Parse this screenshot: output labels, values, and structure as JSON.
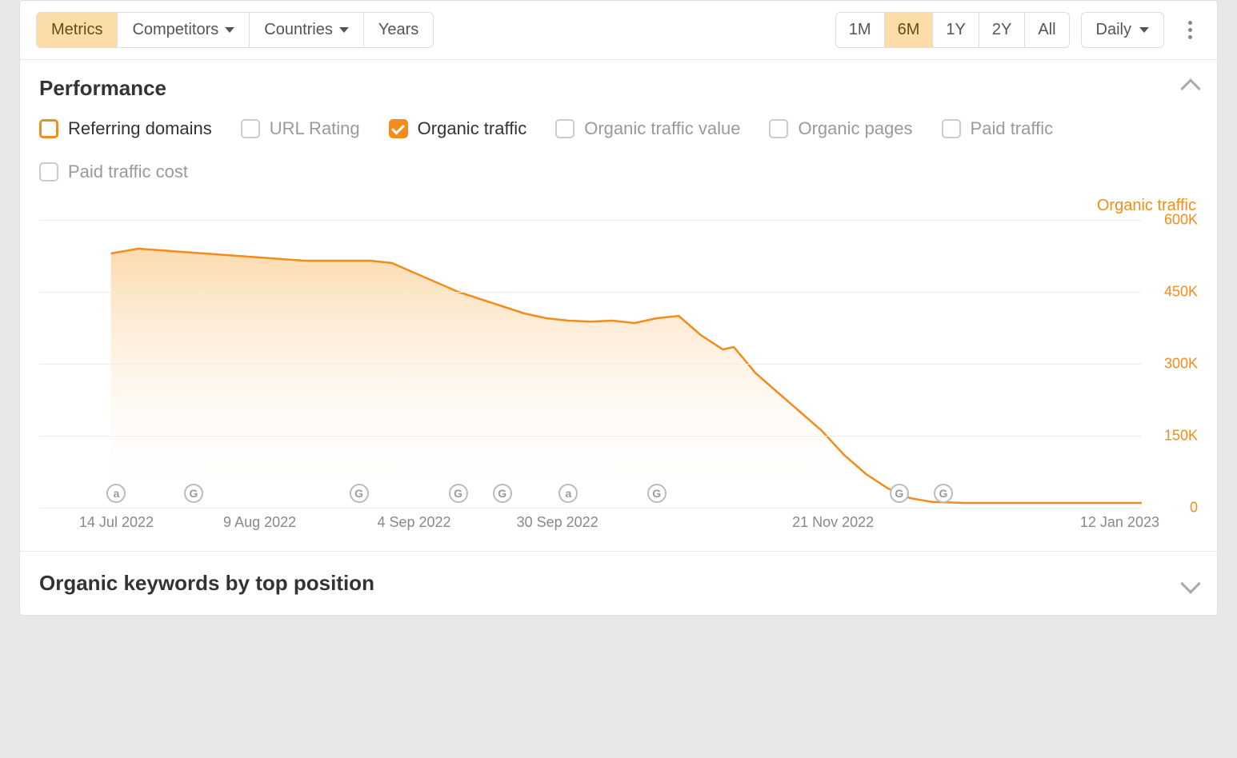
{
  "colors": {
    "accent": "#f28c1a",
    "area_top": "#fbd6a5",
    "area_bottom": "#ffffff",
    "grid": "#eeeeee",
    "border": "#dddddd",
    "text_muted": "#9a9a9a",
    "background": "#e8e8e8"
  },
  "toolbar": {
    "tabs": [
      {
        "label": "Metrics",
        "active": true,
        "dropdown": false
      },
      {
        "label": "Competitors",
        "active": false,
        "dropdown": true
      },
      {
        "label": "Countries",
        "active": false,
        "dropdown": true
      },
      {
        "label": "Years",
        "active": false,
        "dropdown": false
      }
    ],
    "ranges": [
      {
        "label": "1M",
        "active": false
      },
      {
        "label": "6M",
        "active": true
      },
      {
        "label": "1Y",
        "active": false
      },
      {
        "label": "2Y",
        "active": false
      },
      {
        "label": "All",
        "active": false
      }
    ],
    "frequency": "Daily"
  },
  "performance": {
    "title": "Performance",
    "metrics": [
      {
        "label": "Referring domains",
        "state": "outlined"
      },
      {
        "label": "URL Rating",
        "state": "off"
      },
      {
        "label": "Organic traffic",
        "state": "checked"
      },
      {
        "label": "Organic traffic value",
        "state": "off"
      },
      {
        "label": "Organic pages",
        "state": "off"
      },
      {
        "label": "Paid traffic",
        "state": "off"
      },
      {
        "label": "Paid traffic cost",
        "state": "off"
      }
    ],
    "chart": {
      "type": "area",
      "series_label": "Organic traffic",
      "line_color": "#f28c1a",
      "line_width": 2.5,
      "area_gradient_top": "#fbd6a5",
      "area_gradient_bottom": "#ffffff",
      "ylim": [
        0,
        600000
      ],
      "yticks": [
        {
          "value": 600000,
          "label": "600K"
        },
        {
          "value": 450000,
          "label": "450K"
        },
        {
          "value": 300000,
          "label": "300K"
        },
        {
          "value": 150000,
          "label": "150K"
        },
        {
          "value": 0,
          "label": "0"
        }
      ],
      "xlim": [
        0,
        100
      ],
      "xticks": [
        {
          "pos": 7,
          "label": "14 Jul 2022"
        },
        {
          "pos": 20,
          "label": "9 Aug 2022"
        },
        {
          "pos": 34,
          "label": "4 Sep 2022"
        },
        {
          "pos": 47,
          "label": "30 Sep 2022"
        },
        {
          "pos": 72,
          "label": "21 Nov 2022"
        },
        {
          "pos": 98,
          "label": "12 Jan 2023"
        }
      ],
      "data": [
        {
          "x": 6.5,
          "y": 530000
        },
        {
          "x": 9,
          "y": 540000
        },
        {
          "x": 12,
          "y": 535000
        },
        {
          "x": 15,
          "y": 530000
        },
        {
          "x": 18,
          "y": 525000
        },
        {
          "x": 21,
          "y": 520000
        },
        {
          "x": 24,
          "y": 515000
        },
        {
          "x": 27,
          "y": 515000
        },
        {
          "x": 30,
          "y": 515000
        },
        {
          "x": 32,
          "y": 510000
        },
        {
          "x": 34,
          "y": 490000
        },
        {
          "x": 36,
          "y": 470000
        },
        {
          "x": 38,
          "y": 450000
        },
        {
          "x": 40,
          "y": 435000
        },
        {
          "x": 42,
          "y": 420000
        },
        {
          "x": 44,
          "y": 405000
        },
        {
          "x": 46,
          "y": 395000
        },
        {
          "x": 48,
          "y": 390000
        },
        {
          "x": 50,
          "y": 388000
        },
        {
          "x": 52,
          "y": 390000
        },
        {
          "x": 54,
          "y": 385000
        },
        {
          "x": 56,
          "y": 395000
        },
        {
          "x": 58,
          "y": 400000
        },
        {
          "x": 59,
          "y": 380000
        },
        {
          "x": 60,
          "y": 360000
        },
        {
          "x": 62,
          "y": 330000
        },
        {
          "x": 63,
          "y": 335000
        },
        {
          "x": 65,
          "y": 280000
        },
        {
          "x": 67,
          "y": 240000
        },
        {
          "x": 69,
          "y": 200000
        },
        {
          "x": 71,
          "y": 160000
        },
        {
          "x": 73,
          "y": 110000
        },
        {
          "x": 75,
          "y": 70000
        },
        {
          "x": 77,
          "y": 40000
        },
        {
          "x": 79,
          "y": 20000
        },
        {
          "x": 81,
          "y": 12000
        },
        {
          "x": 84,
          "y": 10000
        },
        {
          "x": 88,
          "y": 10000
        },
        {
          "x": 92,
          "y": 10000
        },
        {
          "x": 96,
          "y": 10000
        },
        {
          "x": 100,
          "y": 10000
        }
      ],
      "markers": [
        {
          "pos": 7,
          "glyph": "a"
        },
        {
          "pos": 14,
          "glyph": "G"
        },
        {
          "pos": 29,
          "glyph": "G"
        },
        {
          "pos": 38,
          "glyph": "G"
        },
        {
          "pos": 42,
          "glyph": "G"
        },
        {
          "pos": 48,
          "glyph": "a"
        },
        {
          "pos": 56,
          "glyph": "G"
        },
        {
          "pos": 78,
          "glyph": "G"
        },
        {
          "pos": 82,
          "glyph": "G"
        }
      ]
    }
  },
  "bottom": {
    "title": "Organic keywords by top position"
  }
}
